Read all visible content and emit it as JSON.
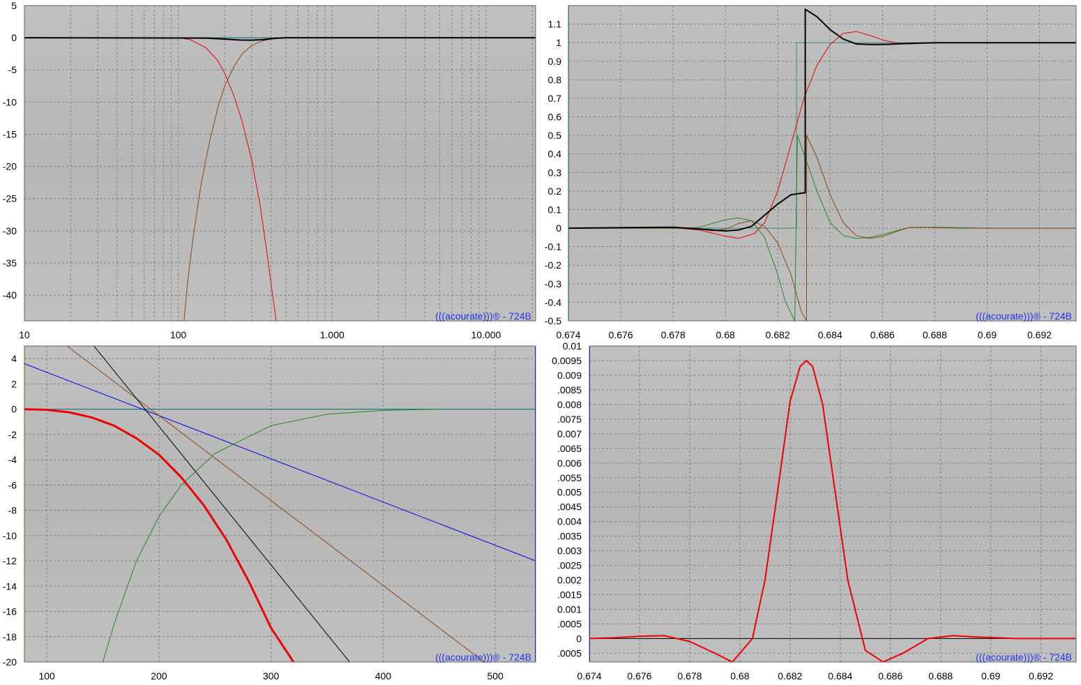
{
  "watermark": "(((acourate)))® - 724B",
  "colors": {
    "background": "#ffffff",
    "plot_bg": "#c0c0c0",
    "plot_bg_dark": "#b6b6b6",
    "grid": "#808080",
    "watermark": "#2233ee"
  },
  "chart_data": [
    {
      "id": "freq-response",
      "type": "line",
      "title": "",
      "xlabel": "",
      "ylabel": "",
      "xscale": "log",
      "xlim": [
        10,
        21000
      ],
      "ylim": [
        -44,
        5
      ],
      "grid": true,
      "x_tick_labels": [
        {
          "value": 10,
          "label": "10"
        },
        {
          "value": 100,
          "label": "100"
        },
        {
          "value": 1000,
          "label": "1.000"
        },
        {
          "value": 10000,
          "label": "10.000"
        }
      ],
      "y_tick_labels": [
        {
          "value": 5,
          "label": "5"
        },
        {
          "value": 0,
          "label": "0"
        },
        {
          "value": -5,
          "label": "-5"
        },
        {
          "value": -10,
          "label": "-10"
        },
        {
          "value": -15,
          "label": "-15"
        },
        {
          "value": -20,
          "label": "-20"
        },
        {
          "value": -25,
          "label": "-25"
        },
        {
          "value": -30,
          "label": "-30"
        },
        {
          "value": -35,
          "label": "-35"
        },
        {
          "value": -40,
          "label": "-40"
        }
      ],
      "series": [
        {
          "color": "#00707a",
          "width": 1,
          "x": [
            10,
            21000
          ],
          "y": [
            0,
            0
          ]
        },
        {
          "color": "#ee0000",
          "width": 1,
          "x": [
            10,
            100,
            120,
            150,
            180,
            200,
            230,
            260,
            300,
            340,
            380,
            410,
            430,
            440
          ],
          "y": [
            0,
            0,
            -0.3,
            -1.5,
            -3.5,
            -5.5,
            -9,
            -13,
            -19,
            -26,
            -34,
            -40,
            -43.5,
            -45
          ]
        },
        {
          "color": "#8b4513",
          "width": 1,
          "x": [
            108,
            115,
            125,
            140,
            160,
            180,
            200,
            230,
            260,
            300,
            350,
            400,
            450,
            500,
            1000,
            21000
          ],
          "y": [
            -45,
            -38,
            -31,
            -23,
            -16,
            -11,
            -7.5,
            -4.5,
            -2.5,
            -1.2,
            -0.5,
            -0.2,
            -0.05,
            0,
            0,
            0
          ]
        },
        {
          "color": "#000000",
          "width": 2,
          "x": [
            10,
            150,
            200,
            250,
            300,
            350,
            400,
            450,
            500,
            21000
          ],
          "y": [
            0,
            -0.05,
            -0.2,
            -0.35,
            -0.38,
            -0.3,
            -0.15,
            -0.05,
            0,
            0
          ]
        }
      ]
    },
    {
      "id": "step-response",
      "type": "line",
      "title": "",
      "xlabel": "",
      "ylabel": "",
      "xlim": [
        0.674,
        0.6934
      ],
      "ylim": [
        -0.5,
        1.2
      ],
      "grid": true,
      "x_tick_labels": [
        {
          "value": 0.674,
          "label": "0.674"
        },
        {
          "value": 0.676,
          "label": "0.676"
        },
        {
          "value": 0.678,
          "label": "0.678"
        },
        {
          "value": 0.68,
          "label": "0.68"
        },
        {
          "value": 0.682,
          "label": "0.682"
        },
        {
          "value": 0.684,
          "label": "0.684"
        },
        {
          "value": 0.686,
          "label": "0.686"
        },
        {
          "value": 0.688,
          "label": "0.688"
        },
        {
          "value": 0.69,
          "label": "0.69"
        },
        {
          "value": 0.692,
          "label": "0.692"
        },
        {
          "value": 0.694,
          "label": "0.69"
        }
      ],
      "y_tick_labels": [
        {
          "value": 1.1,
          "label": "1.1"
        },
        {
          "value": 1,
          "label": "1"
        },
        {
          "value": 0.9,
          "label": "0.9"
        },
        {
          "value": 0.8,
          "label": "0.8"
        },
        {
          "value": 0.7,
          "label": "0.7"
        },
        {
          "value": 0.6,
          "label": "0.6"
        },
        {
          "value": 0.5,
          "label": "0.5"
        },
        {
          "value": 0.4,
          "label": "0.4"
        },
        {
          "value": 0.3,
          "label": "0.3"
        },
        {
          "value": 0.2,
          "label": "0.2"
        },
        {
          "value": 0.1,
          "label": "0.1"
        },
        {
          "value": 0,
          "label": "0"
        },
        {
          "value": -0.1,
          "label": "-0.1"
        },
        {
          "value": -0.2,
          "label": "-0.2"
        },
        {
          "value": -0.3,
          "label": "-0.3"
        },
        {
          "value": -0.4,
          "label": "-0.4"
        },
        {
          "value": -0.5,
          "label": "-0.5"
        }
      ],
      "series": [
        {
          "color": "#2090c0",
          "width": 2,
          "x": [
            0.674,
            0.674
          ],
          "y": [
            -0.5,
            1.2
          ]
        },
        {
          "color": "#3a8a8a",
          "width": 1,
          "x": [
            0.674,
            0.68272,
            0.68272,
            0.6934
          ],
          "y": [
            0,
            0,
            1,
            1
          ]
        },
        {
          "color": "#ee0000",
          "width": 1,
          "x": [
            0.674,
            0.678,
            0.679,
            0.6799,
            0.6805,
            0.6811,
            0.6815,
            0.682,
            0.6825,
            0.683,
            0.6835,
            0.684,
            0.6845,
            0.685,
            0.6855,
            0.686,
            0.6865,
            0.687,
            0.6875,
            0.689,
            0.6934
          ],
          "y": [
            0,
            0.003,
            -0.01,
            -0.04,
            -0.055,
            -0.03,
            0.03,
            0.2,
            0.45,
            0.7,
            0.88,
            0.99,
            1.05,
            1.06,
            1.04,
            1.015,
            1.0,
            0.993,
            0.997,
            1.0,
            1.0
          ]
        },
        {
          "color": "#228b22",
          "width": 1,
          "x": [
            0.674,
            0.6785,
            0.679,
            0.6795,
            0.68,
            0.6805,
            0.681,
            0.6815,
            0.682,
            0.6823,
            0.68265,
            0.68275,
            0.683,
            0.6835,
            0.684,
            0.6845,
            0.685,
            0.6855,
            0.686,
            0.6865,
            0.687,
            0.688,
            0.69,
            0.6934
          ],
          "y": [
            0,
            0,
            0.005,
            0.025,
            0.045,
            0.055,
            0.04,
            -0.05,
            -0.25,
            -0.4,
            -0.5,
            0.5,
            0.4,
            0.2,
            0.03,
            -0.04,
            -0.055,
            -0.05,
            -0.035,
            -0.015,
            0.003,
            0.005,
            0,
            0
          ]
        },
        {
          "color": "#8b4513",
          "width": 1,
          "x": [
            0.674,
            0.6785,
            0.679,
            0.6795,
            0.68,
            0.6805,
            0.681,
            0.6815,
            0.682,
            0.6825,
            0.6829,
            0.6831,
            0.6831,
            0.6835,
            0.684,
            0.6845,
            0.685,
            0.6855,
            0.686,
            0.6865,
            0.687,
            0.6875,
            0.689,
            0.6934
          ],
          "y": [
            0,
            0,
            -0.005,
            -0.015,
            -0.005,
            0.025,
            0.04,
            0.01,
            -0.08,
            -0.25,
            -0.45,
            -0.5,
            0.5,
            0.38,
            0.18,
            0.03,
            -0.04,
            -0.055,
            -0.045,
            -0.02,
            0.003,
            0.005,
            0,
            0
          ]
        },
        {
          "color": "#000000",
          "width": 2,
          "x": [
            0.674,
            0.678,
            0.679,
            0.68,
            0.6805,
            0.681,
            0.6815,
            0.682,
            0.6825,
            0.683,
            0.68305,
            0.68305,
            0.6835,
            0.684,
            0.6845,
            0.685,
            0.6855,
            0.686,
            0.6865,
            0.687,
            0.688,
            0.6934
          ],
          "y": [
            0,
            0.005,
            -0.005,
            -0.015,
            -0.01,
            0.01,
            0.07,
            0.13,
            0.18,
            0.19,
            0.19,
            1.18,
            1.14,
            1.07,
            1.02,
            0.993,
            0.99,
            0.99,
            0.993,
            0.996,
            1.0,
            1.0
          ]
        }
      ]
    },
    {
      "id": "filter-zoom",
      "type": "line",
      "title": "",
      "xlabel": "",
      "ylabel": "",
      "xlim": [
        80,
        536
      ],
      "ylim": [
        -20,
        5
      ],
      "grid": true,
      "x_tick_labels": [
        {
          "value": 100,
          "label": "100"
        },
        {
          "value": 200,
          "label": "200"
        },
        {
          "value": 300,
          "label": "300"
        },
        {
          "value": 400,
          "label": "400"
        },
        {
          "value": 500,
          "label": "500"
        }
      ],
      "y_tick_labels": [
        {
          "value": 4,
          "label": "4"
        },
        {
          "value": 2,
          "label": "2"
        },
        {
          "value": 0,
          "label": "0"
        },
        {
          "value": -2,
          "label": "-2"
        },
        {
          "value": -4,
          "label": "-4"
        },
        {
          "value": -6,
          "label": "-6"
        },
        {
          "value": -8,
          "label": "-8"
        },
        {
          "value": -10,
          "label": "-10"
        },
        {
          "value": -12,
          "label": "-12"
        },
        {
          "value": -14,
          "label": "-14"
        },
        {
          "value": -16,
          "label": "-16"
        },
        {
          "value": -18,
          "label": "-18"
        },
        {
          "value": -20,
          "label": "-20"
        }
      ],
      "series": [
        {
          "color": "#00707a",
          "width": 1,
          "x": [
            80,
            536
          ],
          "y": [
            0,
            0
          ]
        },
        {
          "color": "#c8c800",
          "width": 2,
          "x": [
            80,
            80
          ],
          "y": [
            -20,
            5
          ]
        },
        {
          "color": "#0000ee",
          "width": 2,
          "x": [
            536,
            536
          ],
          "y": [
            -20,
            5
          ]
        },
        {
          "color": "#0000ee",
          "width": 1,
          "x": [
            80,
            536
          ],
          "y": [
            3.6,
            -12
          ]
        },
        {
          "color": "#8b4513",
          "width": 1,
          "x": [
            118,
            490
          ],
          "y": [
            5,
            -20
          ]
        },
        {
          "color": "#000000",
          "width": 1,
          "x": [
            142,
            370
          ],
          "y": [
            5,
            -20
          ]
        },
        {
          "color": "#228b22",
          "width": 1,
          "x": [
            150,
            160,
            170,
            180,
            200,
            220,
            250,
            300,
            350,
            400,
            450
          ],
          "y": [
            -20,
            -17,
            -14.5,
            -12,
            -8.5,
            -6,
            -3.5,
            -1.3,
            -0.4,
            -0.1,
            0
          ]
        },
        {
          "color": "#ee0000",
          "width": 3,
          "x": [
            80,
            100,
            120,
            140,
            160,
            180,
            200,
            220,
            240,
            260,
            280,
            300,
            320
          ],
          "y": [
            0,
            -0.05,
            -0.25,
            -0.65,
            -1.3,
            -2.3,
            -3.6,
            -5.4,
            -7.6,
            -10.3,
            -13.6,
            -17.3,
            -20
          ]
        }
      ]
    },
    {
      "id": "impulse-response",
      "type": "line",
      "title": "",
      "xlabel": "",
      "ylabel": "",
      "xlim": [
        0.674,
        0.6934
      ],
      "ylim": [
        -0.0008,
        0.01
      ],
      "grid": true,
      "x_tick_labels": [
        {
          "value": 0.674,
          "label": "0.674"
        },
        {
          "value": 0.676,
          "label": "0.676"
        },
        {
          "value": 0.678,
          "label": "0.678"
        },
        {
          "value": 0.68,
          "label": "0.68"
        },
        {
          "value": 0.682,
          "label": "0.682"
        },
        {
          "value": 0.684,
          "label": "0.684"
        },
        {
          "value": 0.686,
          "label": "0.686"
        },
        {
          "value": 0.688,
          "label": "0.688"
        },
        {
          "value": 0.69,
          "label": "0.69"
        },
        {
          "value": 0.692,
          "label": "0.692"
        },
        {
          "value": 0.694,
          "label": "0.69"
        }
      ],
      "y_tick_labels": [
        {
          "value": 0.01,
          "label": "0.01"
        },
        {
          "value": 0.0095,
          "label": "0.0095"
        },
        {
          "value": 0.009,
          "label": "0.009"
        },
        {
          "value": 0.0085,
          "label": ".0085"
        },
        {
          "value": 0.008,
          "label": "0.008"
        },
        {
          "value": 0.0075,
          "label": ".0075"
        },
        {
          "value": 0.007,
          "label": "0.007"
        },
        {
          "value": 0.0065,
          "label": ".0065"
        },
        {
          "value": 0.006,
          "label": "0.006"
        },
        {
          "value": 0.0055,
          "label": ".0055"
        },
        {
          "value": 0.005,
          "label": "0.005"
        },
        {
          "value": 0.0045,
          "label": ".0045"
        },
        {
          "value": 0.004,
          "label": "0.004"
        },
        {
          "value": 0.0035,
          "label": ".0035"
        },
        {
          "value": 0.003,
          "label": "0.003"
        },
        {
          "value": 0.0025,
          "label": ".0025"
        },
        {
          "value": 0.002,
          "label": "0.002"
        },
        {
          "value": 0.0015,
          "label": ".0015"
        },
        {
          "value": 0.001,
          "label": "0.001"
        },
        {
          "value": 0.0005,
          "label": ".0005"
        },
        {
          "value": 0,
          "label": "0"
        },
        {
          "value": -0.0005,
          "label": ".0005"
        }
      ],
      "series": [
        {
          "color": "#0000ee",
          "width": 2,
          "x": [
            0.674,
            0.674
          ],
          "y": [
            -0.0008,
            0.01
          ]
        },
        {
          "color": "#cc3366",
          "width": 1,
          "x": [
            0.6934,
            0.6934
          ],
          "y": [
            -0.0008,
            0.01
          ]
        },
        {
          "color": "#000000",
          "width": 1,
          "x": [
            0.674,
            0.6934
          ],
          "y": [
            0,
            0
          ]
        },
        {
          "color": "#ee0000",
          "width": 2,
          "x": [
            0.674,
            0.675,
            0.676,
            0.677,
            0.678,
            0.679,
            0.6797,
            0.6805,
            0.681,
            0.6815,
            0.682,
            0.6824,
            0.68265,
            0.6829,
            0.6833,
            0.6838,
            0.6843,
            0.685,
            0.6857,
            0.6865,
            0.6875,
            0.6885,
            0.6895,
            0.691,
            0.6934
          ],
          "y": [
            0,
            3e-05,
            8e-05,
            0.0001,
            -0.0001,
            -0.0005,
            -0.0008,
            0,
            0.002,
            0.005,
            0.0081,
            0.0093,
            0.0095,
            0.0093,
            0.008,
            0.005,
            0.002,
            -0.0004,
            -0.0008,
            -0.0005,
            0,
            0.0001,
            5e-05,
            0,
            0
          ]
        }
      ]
    }
  ]
}
